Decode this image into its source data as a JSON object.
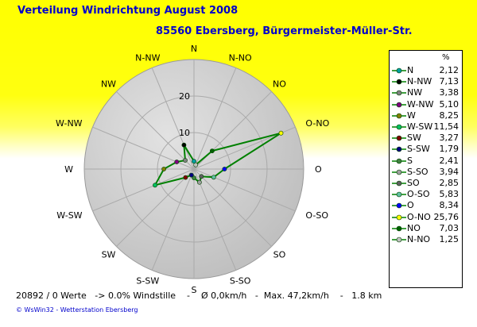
{
  "header": {
    "title": "Verteilung Windrichtung    August 2008",
    "subtitle": "85560 Ebersberg, Bürgermeister-Müller-Str."
  },
  "colors": {
    "background_top": "#ffff00",
    "background_bottom": "#ffffff",
    "title_text": "#0000cc",
    "polar_fill": "#c8c8c8",
    "series_line": "#008000"
  },
  "chart_data": {
    "type": "radar",
    "title": "Verteilung Windrichtung    August 2008",
    "subtitle": "85560 Ebersberg, Bürgermeister-Müller-Str.",
    "unit": "%",
    "directions": [
      "N",
      "N-NO",
      "NO",
      "O-NO",
      "O",
      "O-SO",
      "SO",
      "S-SO",
      "S",
      "S-SW",
      "SW",
      "W-SW",
      "W",
      "W-NW",
      "NW",
      "N-NW"
    ],
    "ring_ticks": [
      10,
      20
    ],
    "rmax": 30,
    "grid": true,
    "legend_position": "right",
    "series": [
      {
        "values": [
          2.12,
          1.25,
          7.03,
          25.76,
          8.34,
          5.83,
          2.85,
          3.94,
          2.41,
          1.79,
          3.27,
          11.54,
          8.25,
          5.1,
          3.38,
          7.13
        ]
      }
    ],
    "legend": [
      {
        "name": "N",
        "value": "2,12",
        "color": "#00a0a0"
      },
      {
        "name": "N-NW",
        "value": "7,13",
        "color": "#000000"
      },
      {
        "name": "NW",
        "value": "3,38",
        "color": "#808080"
      },
      {
        "name": "W-NW",
        "value": "5,10",
        "color": "#800080"
      },
      {
        "name": "W",
        "value": "8,25",
        "color": "#808000"
      },
      {
        "name": "W-SW",
        "value": "11,54",
        "color": "#00c060"
      },
      {
        "name": "SW",
        "value": "3,27",
        "color": "#800000"
      },
      {
        "name": "S-SW",
        "value": "1,79",
        "color": "#000080"
      },
      {
        "name": "S",
        "value": "2,41",
        "color": "#408040"
      },
      {
        "name": "S-SO",
        "value": "3,94",
        "color": "#a0a0a0"
      },
      {
        "name": "SO",
        "value": "2,85",
        "color": "#606060"
      },
      {
        "name": "O-SO",
        "value": "5,83",
        "color": "#60c0a0"
      },
      {
        "name": "O",
        "value": "8,34",
        "color": "#0000ff"
      },
      {
        "name": "O-NO",
        "value": "25,76",
        "color": "#ffff00"
      },
      {
        "name": "NO",
        "value": "7,03",
        "color": "#006000"
      },
      {
        "name": "N-NO",
        "value": "1,25",
        "color": "#c0c0c0"
      }
    ]
  },
  "footer": {
    "stats": "20892 / 0 Werte   -> 0.0% Windstille    -    Ø 0,0km/h   -  Max. 47,2km/h    -   1.8 km",
    "credit": "© WsWin32  -  Wetterstation Ebersberg"
  }
}
